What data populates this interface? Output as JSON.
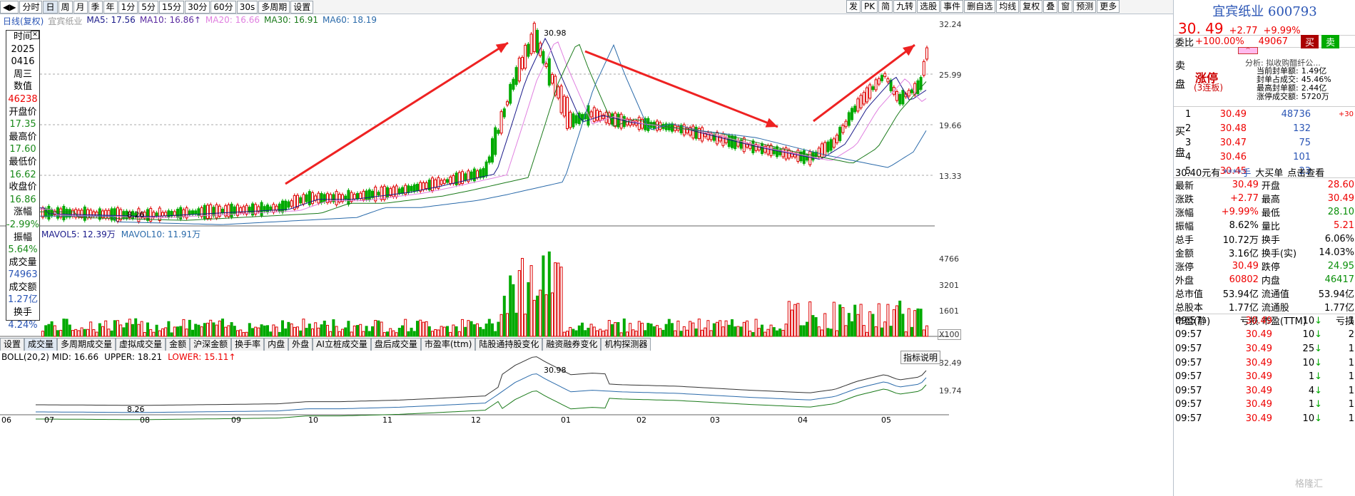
{
  "toolbar": {
    "left_buttons": [
      "分时",
      "日",
      "周",
      "月",
      "季",
      "年",
      "1分",
      "5分",
      "15分",
      "30分",
      "60分",
      "30s",
      "多周期",
      "设置"
    ],
    "active": "日",
    "right_buttons": [
      "发",
      "PK",
      "简",
      "九转",
      "选股",
      "事件",
      "删自选",
      "均线",
      "复权",
      "叠",
      "窗",
      "预测",
      "更多"
    ]
  },
  "ma_legend": {
    "title": "日线(复权)",
    "stock": "宜宾纸业",
    "items": [
      {
        "label": "MA5: 17.56",
        "color": "#1a1a8a"
      },
      {
        "label": "MA10: 16.86↑",
        "color": "#5a2aa0"
      },
      {
        "label": "MA20: 16.66",
        "color": "#e080e0"
      },
      {
        "label": "MA30: 16.91",
        "color": "#1a7a1a"
      },
      {
        "label": "MA60: 18.19",
        "color": "#2a6aaa"
      }
    ]
  },
  "info_panel": {
    "items": [
      {
        "label": "时间",
        "value": "2025",
        "value2": "0416",
        "value3": "周三"
      },
      {
        "label": "数值",
        "value": "46238"
      },
      {
        "label": "开盘价",
        "value": "17.35"
      },
      {
        "label": "最高价",
        "value": "17.60"
      },
      {
        "label": "最低价",
        "value": "16.62"
      },
      {
        "label": "收盘价",
        "value": "16.86"
      },
      {
        "label": "涨幅",
        "value": "-2.99%"
      },
      {
        "label": "振幅",
        "value": "5.64%"
      },
      {
        "label": "成交量",
        "value": "74963"
      },
      {
        "label": "成交额",
        "value": "1.27亿"
      },
      {
        "label": "换手",
        "value": "4.24%"
      }
    ]
  },
  "price_axis": [
    "32.24",
    "25.99",
    "19.66",
    "13.33"
  ],
  "price_annotations": {
    "high": "30.98",
    "low": "8.26"
  },
  "volume_legend": {
    "mavol5": "MAVOL5: 12.39万",
    "mavol10": "MAVOL10: 11.91万"
  },
  "volume_axis": [
    "4766",
    "3201",
    "1601"
  ],
  "volume_unit": "X100",
  "tabs": [
    "设置",
    "成交量",
    "多周期成交量",
    "虚拟成交量",
    "金额",
    "沪深金额",
    "换手率",
    "内盘",
    "外盘",
    "AI立桩成交量",
    "盘后成交量",
    "市盈率(ttm)",
    "陆股通持股变化",
    "融资融券变化",
    "机构探测器"
  ],
  "active_tab": "成交量",
  "boll_legend": {
    "text": "BOLL(20,2) MID: 16.66",
    "upper": "UPPER: 18.21",
    "lower": "LOWER: 15.11↑"
  },
  "boll_axis": [
    "32.49",
    "19.74"
  ],
  "boll_high": "30.98",
  "boll_low": "8.26",
  "indicator_btn": "指标说明",
  "date_axis": [
    "06",
    "07",
    "08",
    "09",
    "10",
    "11",
    "12",
    "01",
    "02",
    "03",
    "04",
    "05"
  ],
  "right_panel": {
    "name": "宜宾纸业 600793",
    "price": "30. 49",
    "change": "+2.77",
    "pct": "+9.99%",
    "weibi_label": "委比",
    "weibi": "+100.00%",
    "weibi_diff": "49067",
    "buy_btn": "买",
    "sell_btn": "卖",
    "sell_label": "卖盘",
    "limit_up": "涨停",
    "limit_streak": "(3连板)",
    "analysis": "分析: 拟收购醋纤公...",
    "stats": [
      {
        "label": "当前封单额:",
        "value": "1.49亿"
      },
      {
        "label": "封单占成交:",
        "value": "45.46%"
      },
      {
        "label": "最高封单额:",
        "value": "2.44亿"
      },
      {
        "label": "涨停成交额:",
        "value": "5720万"
      }
    ],
    "buy_label": "买盘",
    "bids": [
      {
        "lvl": "1",
        "price": "30.49",
        "vol": "48736",
        "chg": "+30"
      },
      {
        "lvl": "2",
        "price": "30.48",
        "vol": "132",
        "chg": ""
      },
      {
        "lvl": "3",
        "price": "30.47",
        "vol": "75",
        "chg": ""
      },
      {
        "lvl": "4",
        "price": "30.46",
        "vol": "101",
        "chg": ""
      },
      {
        "lvl": "5",
        "price": "30.45",
        "vol": "23",
        "chg": ""
      }
    ],
    "bar_line": {
      "p": "30.40元有",
      "stars": "****手",
      "big": "大买单",
      "view": "点击查看"
    },
    "quote": [
      [
        "最新",
        "30.49",
        "开盘",
        "28.60"
      ],
      [
        "涨跌",
        "+2.77",
        "最高",
        "30.49"
      ],
      [
        "涨幅",
        "+9.99%",
        "最低",
        "28.10"
      ],
      [
        "振幅",
        "8.62%",
        "量比",
        "5.21"
      ],
      [
        "总手",
        "10.72万",
        "换手",
        "6.06%"
      ],
      [
        "金额",
        "3.16亿",
        "换手(实)",
        "14.03%"
      ],
      [
        "涨停",
        "30.49",
        "跌停",
        "24.95"
      ],
      [
        "外盘",
        "60802",
        "内盘",
        "46417"
      ],
      [
        "总市值",
        "53.94亿",
        "流通值",
        "53.94亿"
      ],
      [
        "总股本",
        "1.77亿",
        "流通股",
        "1.77亿"
      ],
      [
        "市盈(静)",
        "亏损",
        "市盈(TTM)",
        "亏损"
      ]
    ],
    "ticks": [
      {
        "t": "09:57",
        "p": "30.49",
        "v": "10",
        "c": "1"
      },
      {
        "t": "09:57",
        "p": "30.49",
        "v": "10",
        "c": "2"
      },
      {
        "t": "09:57",
        "p": "30.49",
        "v": "25",
        "c": "1"
      },
      {
        "t": "09:57",
        "p": "30.49",
        "v": "10",
        "c": "1"
      },
      {
        "t": "09:57",
        "p": "30.49",
        "v": "1",
        "c": "1"
      },
      {
        "t": "09:57",
        "p": "30.49",
        "v": "4",
        "c": "1"
      },
      {
        "t": "09:57",
        "p": "30.49",
        "v": "1",
        "c": "1"
      },
      {
        "t": "09:57",
        "p": "30.49",
        "v": "10",
        "c": "1"
      }
    ],
    "watermark": "格隆汇"
  }
}
